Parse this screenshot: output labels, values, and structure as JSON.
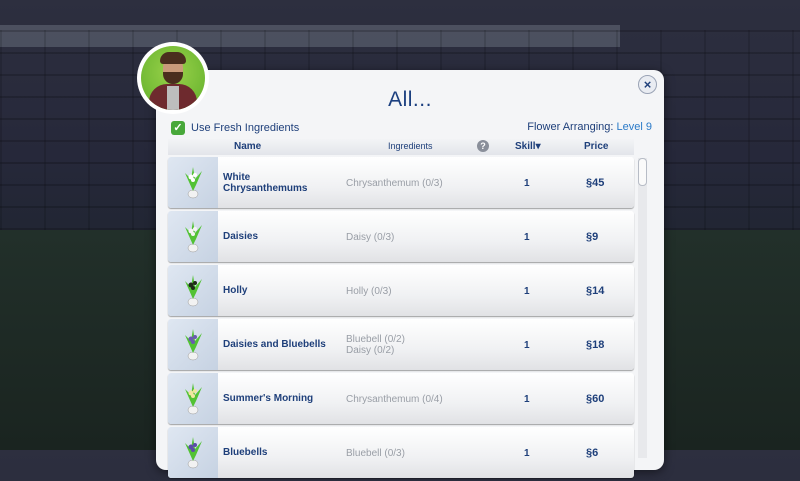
{
  "dialog": {
    "title": "All...",
    "close_icon": "×",
    "use_fresh": {
      "label": "Use Fresh Ingredients",
      "checked": true,
      "check_glyph": "✓"
    },
    "skill_label": "Flower Arranging:",
    "skill_level": "Level 9",
    "columns": {
      "name": "Name",
      "ingredients": "Ingredients",
      "help": "?",
      "skill": "Skill▾",
      "price": "Price"
    },
    "rows": [
      {
        "name_line1": "White",
        "name_line2": "Chrysanthemums",
        "ingr1": "Chrysanthemum (0/3)",
        "ingr2": "",
        "skill": "1",
        "price": "§45",
        "flower_color": "#ffffff"
      },
      {
        "name_line1": "Daisies",
        "name_line2": "",
        "ingr1": "Daisy (0/3)",
        "ingr2": "",
        "skill": "1",
        "price": "§9",
        "flower_color": "#f4f4f4"
      },
      {
        "name_line1": "Holly",
        "name_line2": "",
        "ingr1": "Holly (0/3)",
        "ingr2": "",
        "skill": "1",
        "price": "§14",
        "flower_color": "#1f2a1a"
      },
      {
        "name_line1": "Daisies and Bluebells",
        "name_line2": "",
        "ingr1": "Bluebell (0/2)",
        "ingr2": "Daisy (0/2)",
        "skill": "1",
        "price": "§18",
        "flower_color": "#6a5bb0"
      },
      {
        "name_line1": "Summer's Morning",
        "name_line2": "",
        "ingr1": "Chrysanthemum (0/4)",
        "ingr2": "",
        "skill": "1",
        "price": "§60",
        "flower_color": "#f0e7a0"
      },
      {
        "name_line1": "Bluebells",
        "name_line2": "",
        "ingr1": "Bluebell (0/3)",
        "ingr2": "",
        "skill": "1",
        "price": "§6",
        "flower_color": "#5b4ca8"
      }
    ]
  }
}
